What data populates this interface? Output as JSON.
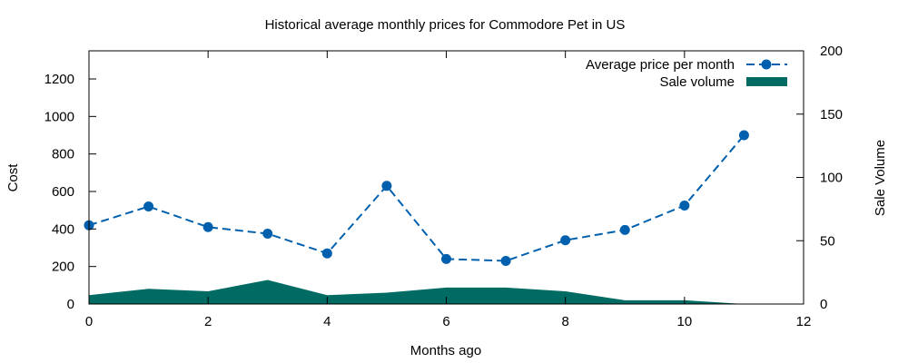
{
  "chart_data": {
    "type": "line",
    "title": "Historical average monthly prices for Commodore Pet in US",
    "xlabel": "Months ago",
    "ylabel": "Cost",
    "y2label": "Sale Volume",
    "xlim": [
      0,
      12
    ],
    "ylim": [
      0,
      1350
    ],
    "y2lim": [
      0,
      200
    ],
    "x_ticks": [
      0,
      2,
      4,
      6,
      8,
      10,
      12
    ],
    "y_ticks": [
      0,
      200,
      400,
      600,
      800,
      1000,
      1200
    ],
    "y2_ticks": [
      0,
      50,
      100,
      150,
      200
    ],
    "grid": false,
    "legend_position": "top-right",
    "series": [
      {
        "name": "Average price per month",
        "kind": "line",
        "axis": "left",
        "color": "#0060ad",
        "x": [
          0,
          1,
          2,
          3,
          4,
          5,
          6,
          7,
          8,
          9,
          10,
          11
        ],
        "values": [
          420,
          520,
          410,
          375,
          270,
          630,
          240,
          230,
          340,
          395,
          525,
          900
        ]
      },
      {
        "name": "Sale volume",
        "kind": "area",
        "axis": "right",
        "color": "#006b63",
        "x": [
          0,
          1,
          2,
          3,
          4,
          5,
          6,
          7,
          8,
          9,
          10,
          11
        ],
        "values": [
          7,
          12,
          10,
          19,
          7,
          9,
          13,
          13,
          10,
          3,
          3,
          0
        ]
      }
    ]
  }
}
